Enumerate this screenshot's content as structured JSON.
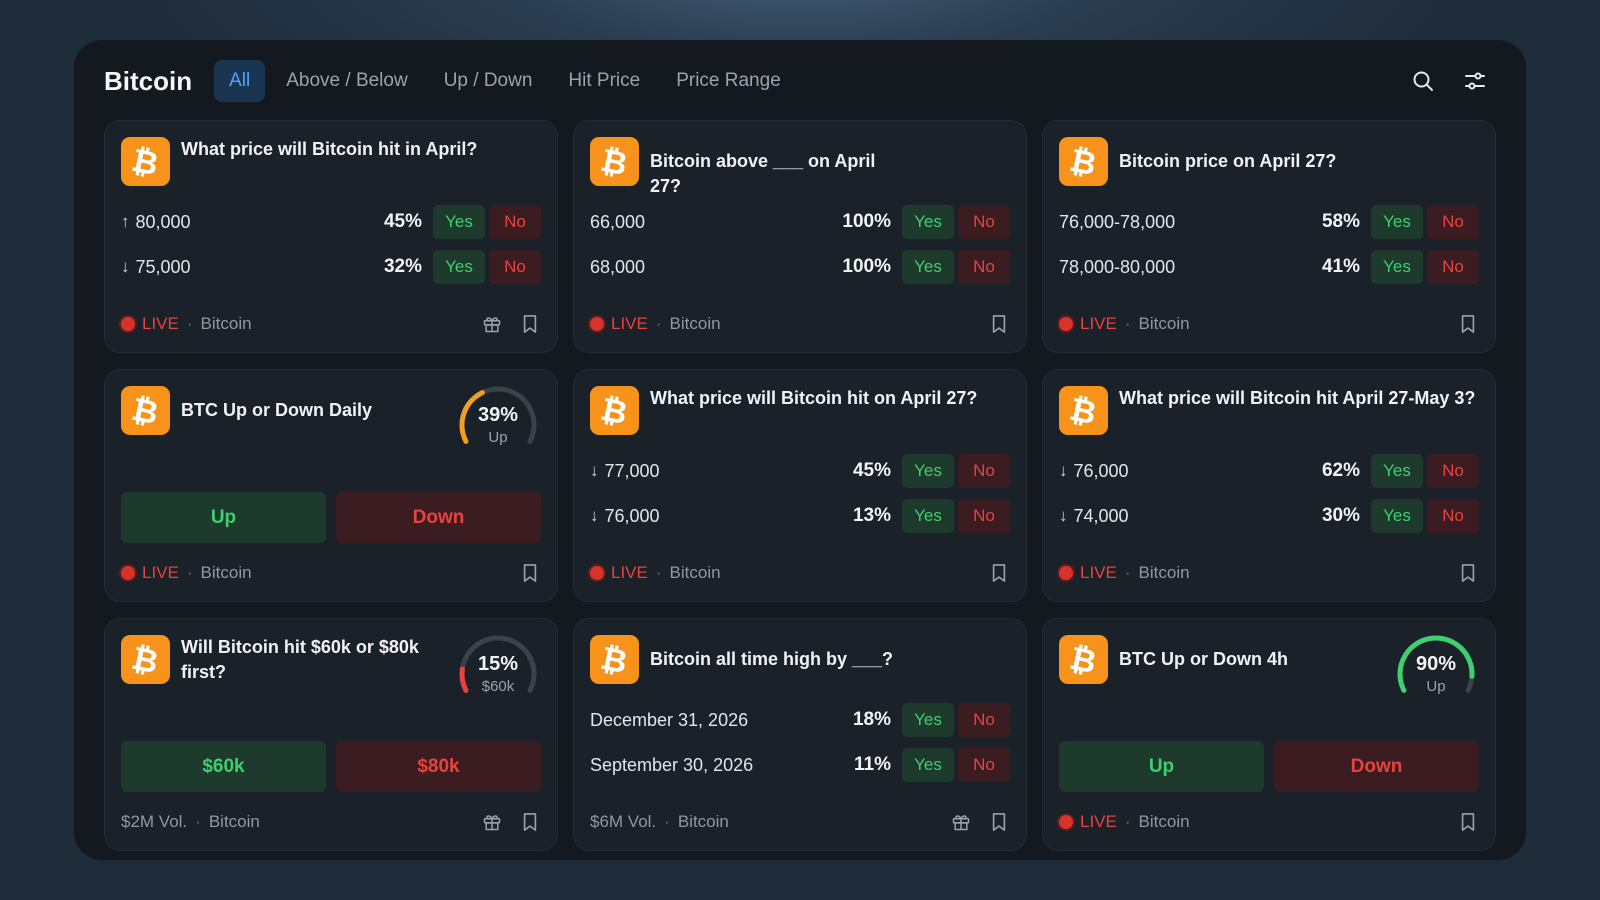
{
  "header": {
    "title": "Bitcoin",
    "tabs": [
      "All",
      "Above / Below",
      "Up / Down",
      "Hit Price",
      "Price Range"
    ]
  },
  "colors": {
    "accent": "#4da3ff",
    "yes": "#3ecf6e",
    "no": "#e8423e",
    "btc": "#f7931a",
    "gauge_orange": "#f0a020",
    "gauge_red": "#e8423e",
    "gauge_green": "#3ecf6e"
  },
  "icons": {
    "search": "search-icon",
    "filter": "sliders-icon",
    "logo": "bitcoin-logo-icon",
    "gift": "gift-icon",
    "bookmark": "bookmark-icon"
  },
  "common": {
    "yes": "Yes",
    "no": "No",
    "live": "LIVE",
    "category": "Bitcoin",
    "logo_glyph": "₿"
  },
  "cards": [
    {
      "title": "What price will Bitcoin hit in April?",
      "rows": [
        {
          "arrow": "↑",
          "label": "80,000",
          "pct": "45%"
        },
        {
          "arrow": "↓",
          "label": "75,000",
          "pct": "32%"
        }
      ],
      "footer": "LIVE",
      "gift": true
    },
    {
      "title": "Bitcoin above ___ on April 27?",
      "rows": [
        {
          "arrow": "",
          "label": "66,000",
          "pct": "100%"
        },
        {
          "arrow": "",
          "label": "68,000",
          "pct": "100%"
        }
      ],
      "footer": "LIVE",
      "gift": false
    },
    {
      "title": "Bitcoin price on April 27?",
      "rows": [
        {
          "arrow": "",
          "label": "76,000-78,000",
          "pct": "58%"
        },
        {
          "arrow": "",
          "label": "78,000-80,000",
          "pct": "41%"
        }
      ],
      "footer": "LIVE",
      "gift": false
    },
    {
      "title": "BTC Up or Down Daily",
      "gauge": {
        "pct": "39%",
        "value": 0.39,
        "sub": "Up",
        "color": "#f0a020"
      },
      "buttons": {
        "left": "Up",
        "right": "Down"
      },
      "footer": "LIVE",
      "gift": false
    },
    {
      "title": "What price will Bitcoin hit on April 27?",
      "rows": [
        {
          "arrow": "↓",
          "label": "77,000",
          "pct": "45%"
        },
        {
          "arrow": "↓",
          "label": "76,000",
          "pct": "13%"
        }
      ],
      "footer": "LIVE",
      "gift": false
    },
    {
      "title": "What price will Bitcoin hit April 27-May 3?",
      "rows": [
        {
          "arrow": "↓",
          "label": "76,000",
          "pct": "62%"
        },
        {
          "arrow": "↓",
          "label": "74,000",
          "pct": "30%"
        }
      ],
      "footer": "LIVE",
      "gift": false
    },
    {
      "title": "Will Bitcoin hit $60k or $80k first?",
      "gauge": {
        "pct": "15%",
        "value": 0.15,
        "sub": "$60k",
        "color": "#e8423e"
      },
      "buttons": {
        "left": "$60k",
        "right": "$80k"
      },
      "footer": "$2M Vol.",
      "gift": true
    },
    {
      "title": "Bitcoin all time high by ___?",
      "rows": [
        {
          "arrow": "",
          "label": "December 31, 2026",
          "pct": "18%"
        },
        {
          "arrow": "",
          "label": "September 30, 2026",
          "pct": "11%"
        }
      ],
      "footer": "$6M Vol.",
      "gift": true
    },
    {
      "title": "BTC Up or Down 4h",
      "gauge": {
        "pct": "90%",
        "value": 0.9,
        "sub": "Up",
        "color": "#3ecf6e"
      },
      "buttons": {
        "left": "Up",
        "right": "Down"
      },
      "footer": "LIVE",
      "gift": false
    }
  ]
}
